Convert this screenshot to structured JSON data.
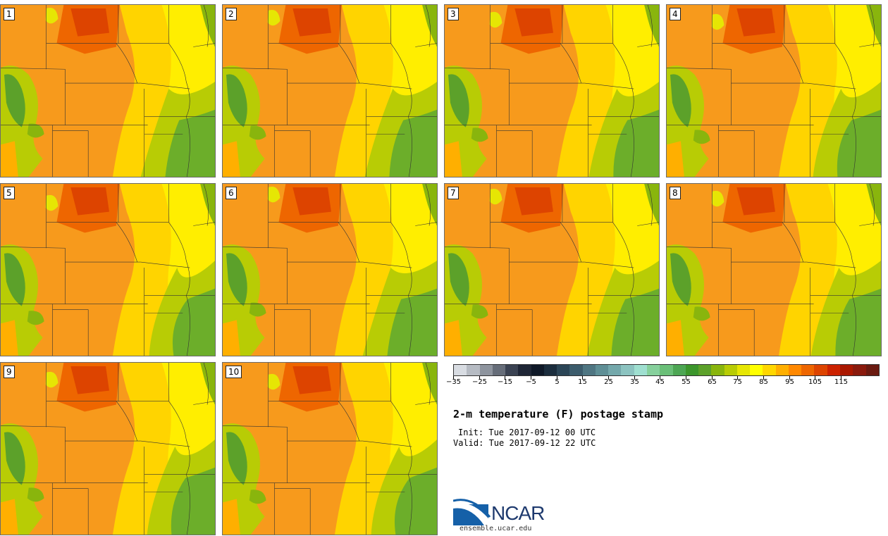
{
  "panels": [
    "1",
    "2",
    "3",
    "4",
    "5",
    "6",
    "7",
    "8",
    "9",
    "10"
  ],
  "colorbar": {
    "ticks": [
      "−35",
      "−25",
      "−15",
      "−5",
      "5",
      "15",
      "25",
      "35",
      "45",
      "55",
      "65",
      "75",
      "85",
      "95",
      "105",
      "115"
    ],
    "colors": [
      "#d8dce2",
      "#b6bbc3",
      "#8e949e",
      "#666d79",
      "#3a4252",
      "#1f2636",
      "#0f1928",
      "#1b2d3d",
      "#2b4556",
      "#3c5c6c",
      "#4f7682",
      "#5f8f96",
      "#74a8ab",
      "#8cc3c0",
      "#9fdfd0",
      "#86d09c",
      "#6abf78",
      "#4da654",
      "#3c962c",
      "#5ca12a",
      "#89b50d",
      "#b8cc05",
      "#e6e604",
      "#ffff00",
      "#ffd700",
      "#ffaf00",
      "#ff8800",
      "#ee6600",
      "#dd4400",
      "#cc2200",
      "#aa1800",
      "#8a1a0d",
      "#6a1a10"
    ]
  },
  "title": "2-m temperature (F) postage stamp",
  "init": "Init: Tue 2017-09-12 00 UTC",
  "valid": "Valid: Tue 2017-09-12 22 UTC",
  "logo": {
    "text": "NCAR",
    "url": "ensemble.ucar.edu"
  }
}
